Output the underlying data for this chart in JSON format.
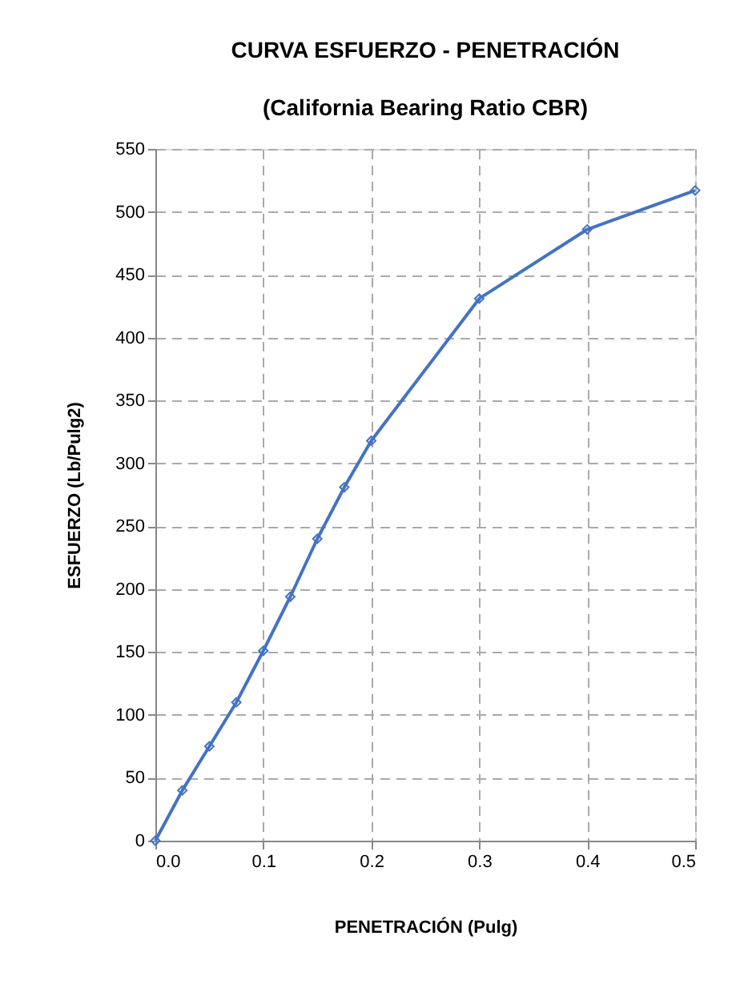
{
  "chart_data": {
    "type": "line",
    "title": "CURVA ESFUERZO - PENETRACIÓN",
    "subtitle": "(California Bearing Ratio CBR)",
    "xlabel": "PENETRACIÓN (Pulg)",
    "ylabel": "ESFUERZO (Lb/Pulg2)",
    "x": [
      0,
      0.025,
      0.05,
      0.075,
      0.1,
      0.125,
      0.15,
      0.175,
      0.2,
      0.3,
      0.4,
      0.5
    ],
    "series": [
      {
        "color": "#4472c4",
        "values": [
          0,
          40,
          75,
          110,
          151,
          194,
          240,
          281,
          318,
          431,
          486,
          517
        ]
      }
    ],
    "xlim": [
      0,
      0.5
    ],
    "xticks": [
      {
        "value": 0,
        "label": "0.0"
      },
      {
        "value": 0.1,
        "label": "0.1"
      },
      {
        "value": 0.2,
        "label": "0.2"
      },
      {
        "value": 0.3,
        "label": "0.3"
      },
      {
        "value": 0.4,
        "label": "0.4"
      },
      {
        "value": 0.5,
        "label": "0.5"
      }
    ],
    "ylim": [
      0,
      550
    ],
    "yticks": [
      0,
      50,
      100,
      150,
      200,
      250,
      300,
      350,
      400,
      450,
      500,
      550
    ],
    "grid": true,
    "marker": "diamond",
    "line_style": "solid"
  }
}
